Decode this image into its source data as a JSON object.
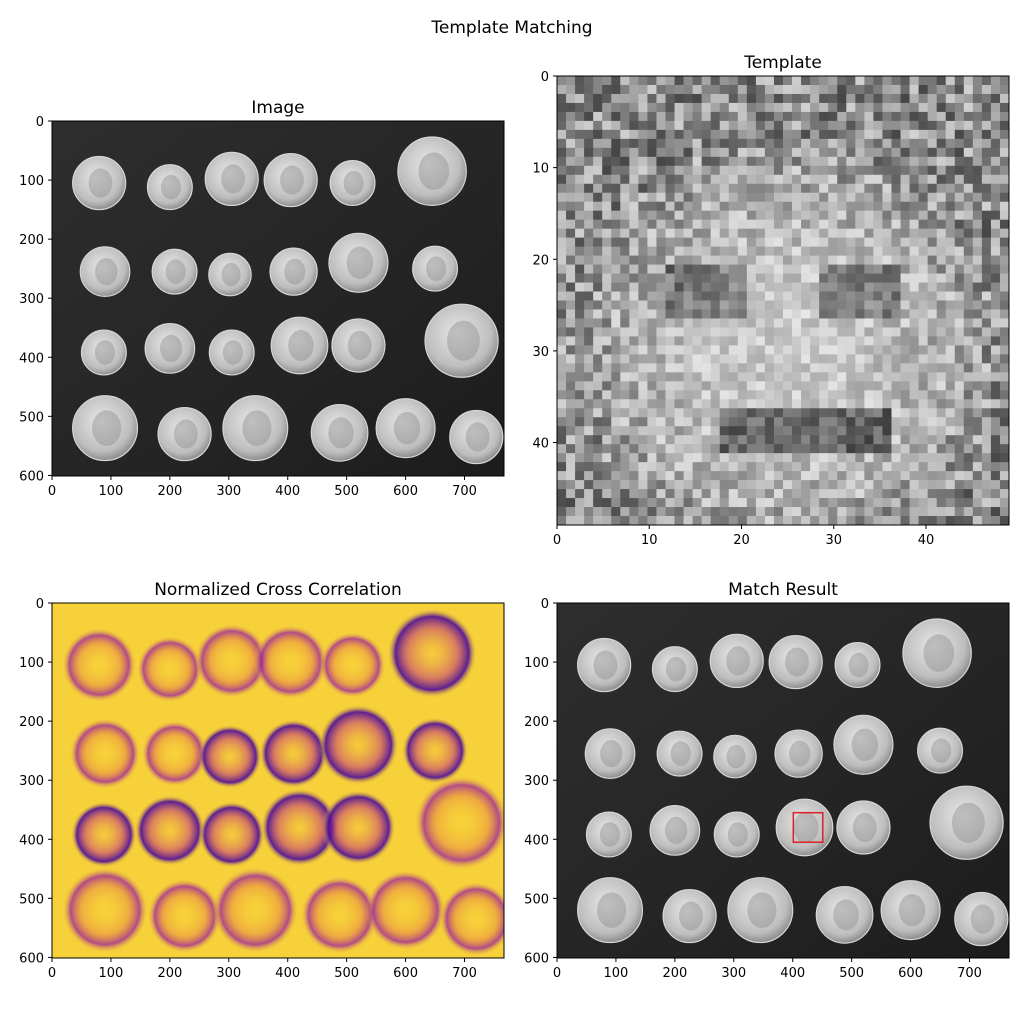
{
  "figure": {
    "title": "Template Matching"
  },
  "chart_data": [
    {
      "type": "image",
      "title": "Image",
      "colormap": "gray",
      "xlim": [
        0,
        767
      ],
      "ylim": [
        601,
        0
      ],
      "xticks": [
        "0",
        "100",
        "200",
        "300",
        "400",
        "500",
        "600",
        "700"
      ],
      "yticks": [
        "0",
        "100",
        "200",
        "300",
        "400",
        "500",
        "600"
      ],
      "content": "coins"
    },
    {
      "type": "image",
      "title": "Template",
      "colormap": "gray",
      "xlim": [
        0,
        49
      ],
      "ylim": [
        49,
        0
      ],
      "xticks": [
        "0",
        "10",
        "20",
        "30",
        "40"
      ],
      "yticks": [
        "0",
        "10",
        "20",
        "30",
        "40"
      ],
      "content": "coin face patch"
    },
    {
      "type": "heatmap",
      "title": "Normalized Cross Correlation",
      "colormap": "plasma",
      "xlim": [
        0,
        767
      ],
      "ylim": [
        601,
        0
      ],
      "xticks": [
        "0",
        "100",
        "200",
        "300",
        "400",
        "500",
        "600",
        "700"
      ],
      "yticks": [
        "0",
        "100",
        "200",
        "300",
        "400",
        "500",
        "600"
      ]
    },
    {
      "type": "image",
      "title": "Match Result",
      "colormap": "gray",
      "xlim": [
        0,
        767
      ],
      "ylim": [
        601,
        0
      ],
      "xticks": [
        "0",
        "100",
        "200",
        "300",
        "400",
        "500",
        "600",
        "700"
      ],
      "yticks": [
        "0",
        "100",
        "200",
        "300",
        "400",
        "500",
        "600"
      ],
      "match_box": {
        "x": 401,
        "y": 355,
        "width": 50,
        "height": 50,
        "color": "#e02020"
      }
    }
  ]
}
